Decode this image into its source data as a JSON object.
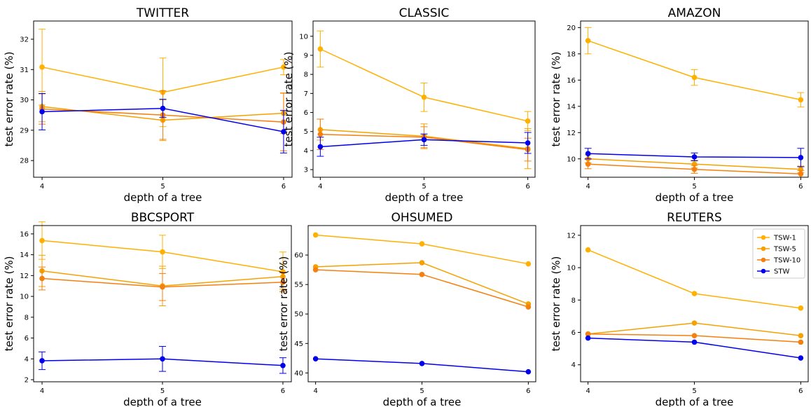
{
  "chart_data": [
    {
      "type": "line",
      "title": "TWITTER",
      "xlabel": "depth of a tree",
      "ylabel": "test error rate (%)",
      "x": [
        4,
        5,
        6
      ],
      "xlim": [
        3.93,
        6.07
      ],
      "ylim": [
        27.45,
        32.6
      ],
      "yticks": [
        28,
        29,
        30,
        31,
        32
      ],
      "series": [
        {
          "name": "TSW-1",
          "color": "#FFB000",
          "values": [
            31.08,
            30.25,
            31.08
          ],
          "errors": [
            1.25,
            1.13,
            0.25
          ]
        },
        {
          "name": "TSW-5",
          "color": "#F5A100",
          "values": [
            29.78,
            29.33,
            29.56
          ],
          "errors": [
            0.5,
            0.67,
            0.67
          ]
        },
        {
          "name": "TSW-10",
          "color": "#F57F0F",
          "values": [
            29.7,
            29.5,
            29.27
          ],
          "errors": [
            0.5,
            0.8,
            0.95
          ]
        },
        {
          "name": "STW",
          "color": "#0000EE",
          "values": [
            29.61,
            29.72,
            28.95
          ],
          "errors": [
            0.6,
            0.3,
            0.7
          ]
        }
      ]
    },
    {
      "type": "line",
      "title": "CLASSIC",
      "xlabel": "depth of a tree",
      "ylabel": "test error rate (%)",
      "x": [
        4,
        5,
        6
      ],
      "xlim": [
        3.93,
        6.07
      ],
      "ylim": [
        2.6,
        10.8
      ],
      "yticks": [
        3,
        4,
        5,
        6,
        7,
        8,
        9,
        10
      ],
      "series": [
        {
          "name": "TSW-1",
          "color": "#FFB000",
          "values": [
            9.33,
            6.8,
            5.55
          ],
          "errors": [
            0.95,
            0.75,
            0.5
          ]
        },
        {
          "name": "TSW-5",
          "color": "#F5A100",
          "values": [
            5.1,
            4.75,
            4.1
          ],
          "errors": [
            0.55,
            0.65,
            1.05
          ]
        },
        {
          "name": "TSW-10",
          "color": "#F57F0F",
          "values": [
            4.85,
            4.7,
            4.05
          ],
          "errors": [
            0.8,
            0.55,
            0.6
          ]
        },
        {
          "name": "STW",
          "color": "#0000EE",
          "values": [
            4.2,
            4.57,
            4.4
          ],
          "errors": [
            0.5,
            0.3,
            0.55
          ]
        }
      ]
    },
    {
      "type": "line",
      "title": "AMAZON",
      "xlabel": "depth of a tree",
      "ylabel": "test error rate (%)",
      "x": [
        4,
        5,
        6
      ],
      "xlim": [
        3.93,
        6.07
      ],
      "ylim": [
        8.6,
        20.5
      ],
      "yticks": [
        10,
        12,
        14,
        16,
        18,
        20
      ],
      "series": [
        {
          "name": "TSW-1",
          "color": "#FFB000",
          "values": [
            19.0,
            16.2,
            14.5
          ],
          "errors": [
            1.0,
            0.6,
            0.55
          ]
        },
        {
          "name": "TSW-5",
          "color": "#F5A100",
          "values": [
            10.0,
            9.6,
            9.2
          ],
          "errors": [
            0.3,
            0.3,
            0.25
          ]
        },
        {
          "name": "TSW-10",
          "color": "#F57F0F",
          "values": [
            9.6,
            9.2,
            8.85
          ],
          "errors": [
            0.35,
            0.3,
            0.25
          ]
        },
        {
          "name": "STW",
          "color": "#0000EE",
          "values": [
            10.4,
            10.15,
            10.1
          ],
          "errors": [
            0.4,
            0.3,
            0.7
          ]
        }
      ]
    },
    {
      "type": "line",
      "title": "BBCSPORT",
      "xlabel": "depth of a tree",
      "ylabel": "test error rate (%)",
      "x": [
        4,
        5,
        6
      ],
      "xlim": [
        3.93,
        6.07
      ],
      "ylim": [
        1.8,
        16.8
      ],
      "yticks": [
        2,
        4,
        6,
        8,
        10,
        12,
        14,
        16
      ],
      "series": [
        {
          "name": "TSW-1",
          "color": "#FFB000",
          "values": [
            15.36,
            14.27,
            12.36
          ],
          "errors": [
            1.8,
            1.6,
            1.9
          ]
        },
        {
          "name": "TSW-5",
          "color": "#F5A100",
          "values": [
            12.45,
            11.0,
            11.9
          ],
          "errors": [
            1.5,
            1.9,
            1.2
          ]
        },
        {
          "name": "TSW-10",
          "color": "#F57F0F",
          "values": [
            11.72,
            10.9,
            11.36
          ],
          "errors": [
            1.1,
            1.3,
            0.9
          ]
        },
        {
          "name": "STW",
          "color": "#0000EE",
          "values": [
            3.82,
            4.0,
            3.36
          ],
          "errors": [
            0.85,
            1.2,
            0.75
          ]
        }
      ]
    },
    {
      "type": "line",
      "title": "OHSUMED",
      "xlabel": "depth of a tree",
      "ylabel": "test error rate (%)",
      "x": [
        4,
        5,
        6
      ],
      "xlim": [
        3.93,
        6.07
      ],
      "ylim": [
        38.5,
        65.0
      ],
      "yticks": [
        40,
        45,
        50,
        55,
        60
      ],
      "series": [
        {
          "name": "TSW-1",
          "color": "#FFB000",
          "values": [
            63.4,
            61.9,
            58.5
          ]
        },
        {
          "name": "TSW-5",
          "color": "#F5A100",
          "values": [
            58.0,
            58.7,
            51.7
          ]
        },
        {
          "name": "TSW-10",
          "color": "#F57F0F",
          "values": [
            57.5,
            56.7,
            51.2
          ]
        },
        {
          "name": "STW",
          "color": "#0000EE",
          "values": [
            42.4,
            41.6,
            40.2
          ]
        }
      ]
    },
    {
      "type": "line",
      "title": "REUTERS",
      "xlabel": "depth of a tree",
      "ylabel": "test error rate (%)",
      "x": [
        4,
        5,
        6
      ],
      "xlim": [
        3.93,
        6.07
      ],
      "ylim": [
        2.95,
        12.6
      ],
      "yticks": [
        4,
        6,
        8,
        10,
        12
      ],
      "legend": "top-right",
      "series": [
        {
          "name": "TSW-1",
          "color": "#FFB000",
          "values": [
            11.1,
            8.4,
            7.5
          ]
        },
        {
          "name": "TSW-5",
          "color": "#F5A100",
          "values": [
            5.9,
            6.58,
            5.8
          ]
        },
        {
          "name": "TSW-10",
          "color": "#F57F0F",
          "values": [
            5.9,
            5.8,
            5.4
          ]
        },
        {
          "name": "STW",
          "color": "#0000EE",
          "values": [
            5.65,
            5.4,
            4.42
          ]
        }
      ]
    }
  ]
}
